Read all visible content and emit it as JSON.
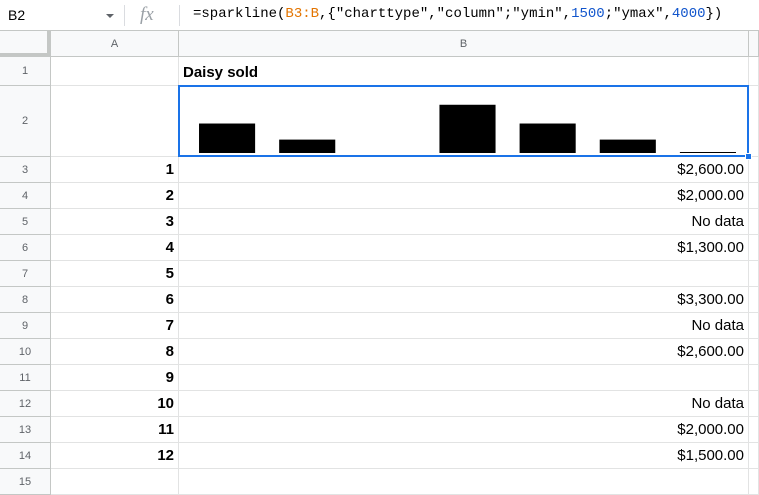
{
  "name_box": "B2",
  "formula": [
    {
      "text": "=sparkline(",
      "kind": "plain"
    },
    {
      "text": "B3:B",
      "kind": "range"
    },
    {
      "text": ",{\"charttype\",\"column\";\"ymin\",",
      "kind": "plain"
    },
    {
      "text": "1500",
      "kind": "number"
    },
    {
      "text": ";\"ymax\",",
      "kind": "plain"
    },
    {
      "text": "4000",
      "kind": "number"
    },
    {
      "text": "})",
      "kind": "plain"
    }
  ],
  "columns": [
    "A",
    "B"
  ],
  "rows": [
    {
      "n": 1,
      "b": "Daisy sold"
    },
    {
      "n": 2
    },
    {
      "n": 3,
      "a": 1,
      "b": {
        "value": 2600,
        "label": "$2,600.00"
      }
    },
    {
      "n": 4,
      "a": 2,
      "b": {
        "value": 2000,
        "label": "$2,000.00"
      }
    },
    {
      "n": 5,
      "a": 3,
      "b": "No data"
    },
    {
      "n": 6,
      "a": 4,
      "b": {
        "value": 1300,
        "label": "$1,300.00"
      }
    },
    {
      "n": 7,
      "a": 5
    },
    {
      "n": 8,
      "a": 6,
      "b": {
        "value": 3300,
        "label": "$3,300.00"
      }
    },
    {
      "n": 9,
      "a": 7,
      "b": "No data"
    },
    {
      "n": 10,
      "a": 8,
      "b": {
        "value": 2600,
        "label": "$2,600.00"
      }
    },
    {
      "n": 11,
      "a": 9
    },
    {
      "n": 12,
      "a": 10,
      "b": "No data"
    },
    {
      "n": 13,
      "a": 11,
      "b": {
        "value": 2000,
        "label": "$2,000.00"
      }
    },
    {
      "n": 14,
      "a": 12,
      "b": {
        "value": 1500,
        "label": "$1,500.00"
      }
    },
    {
      "n": 15
    }
  ]
}
